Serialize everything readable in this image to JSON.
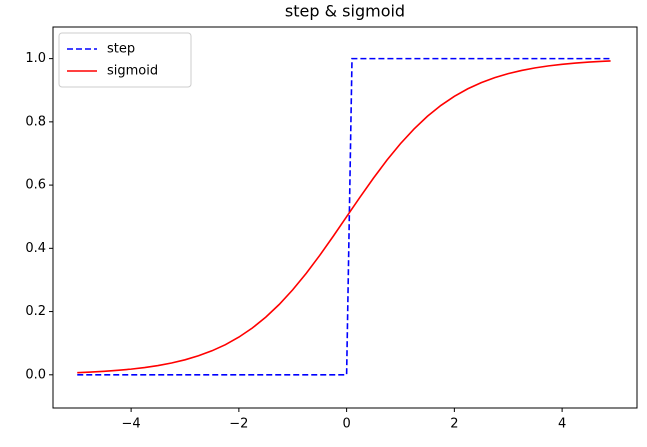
{
  "chart_data": {
    "type": "line",
    "title": "step & sigmoid",
    "x": [
      -5,
      -4.75,
      -4.5,
      -4.25,
      -4,
      -3.75,
      -3.5,
      -3.25,
      -3,
      -2.75,
      -2.5,
      -2.25,
      -2,
      -1.75,
      -1.5,
      -1.25,
      -1,
      -0.75,
      -0.5,
      -0.25,
      0,
      0.1,
      0.25,
      0.5,
      0.75,
      1,
      1.25,
      1.5,
      1.75,
      2,
      2.25,
      2.5,
      2.75,
      3,
      3.25,
      3.5,
      3.75,
      4,
      4.25,
      4.5,
      4.75,
      4.9
    ],
    "series": [
      {
        "name": "step",
        "color": "#0000ff",
        "dashed": true,
        "values": [
          0,
          0,
          0,
          0,
          0,
          0,
          0,
          0,
          0,
          0,
          0,
          0,
          0,
          0,
          0,
          0,
          0,
          0,
          0,
          0,
          0,
          1,
          1,
          1,
          1,
          1,
          1,
          1,
          1,
          1,
          1,
          1,
          1,
          1,
          1,
          1,
          1,
          1,
          1,
          1,
          1,
          1
        ]
      },
      {
        "name": "sigmoid",
        "color": "#ff0000",
        "dashed": false,
        "values": [
          0.0067,
          0.0086,
          0.011,
          0.0141,
          0.018,
          0.023,
          0.0293,
          0.0373,
          0.0474,
          0.0601,
          0.0759,
          0.0953,
          0.1192,
          0.148,
          0.1824,
          0.2227,
          0.2689,
          0.3208,
          0.3775,
          0.4378,
          0.5,
          0.525,
          0.5622,
          0.6225,
          0.6792,
          0.7311,
          0.7773,
          0.8176,
          0.852,
          0.8808,
          0.9047,
          0.9241,
          0.9399,
          0.9526,
          0.9627,
          0.9707,
          0.977,
          0.982,
          0.9859,
          0.989,
          0.9914,
          0.9926
        ]
      }
    ],
    "xlim": [
      -5.45,
      5.39
    ],
    "ylim": [
      -0.105,
      1.1
    ],
    "xticks": [
      {
        "value": -4,
        "label": "−4"
      },
      {
        "value": -2,
        "label": "−2"
      },
      {
        "value": 0,
        "label": "0"
      },
      {
        "value": 2,
        "label": "2"
      },
      {
        "value": 4,
        "label": "4"
      }
    ],
    "yticks": [
      {
        "value": 0,
        "label": "0.0"
      },
      {
        "value": 0.2,
        "label": "0.2"
      },
      {
        "value": 0.4,
        "label": "0.4"
      },
      {
        "value": 0.6,
        "label": "0.6"
      },
      {
        "value": 0.8,
        "label": "0.8"
      },
      {
        "value": 1,
        "label": "1.0"
      }
    ],
    "grid": false,
    "legend": "upper-left"
  }
}
